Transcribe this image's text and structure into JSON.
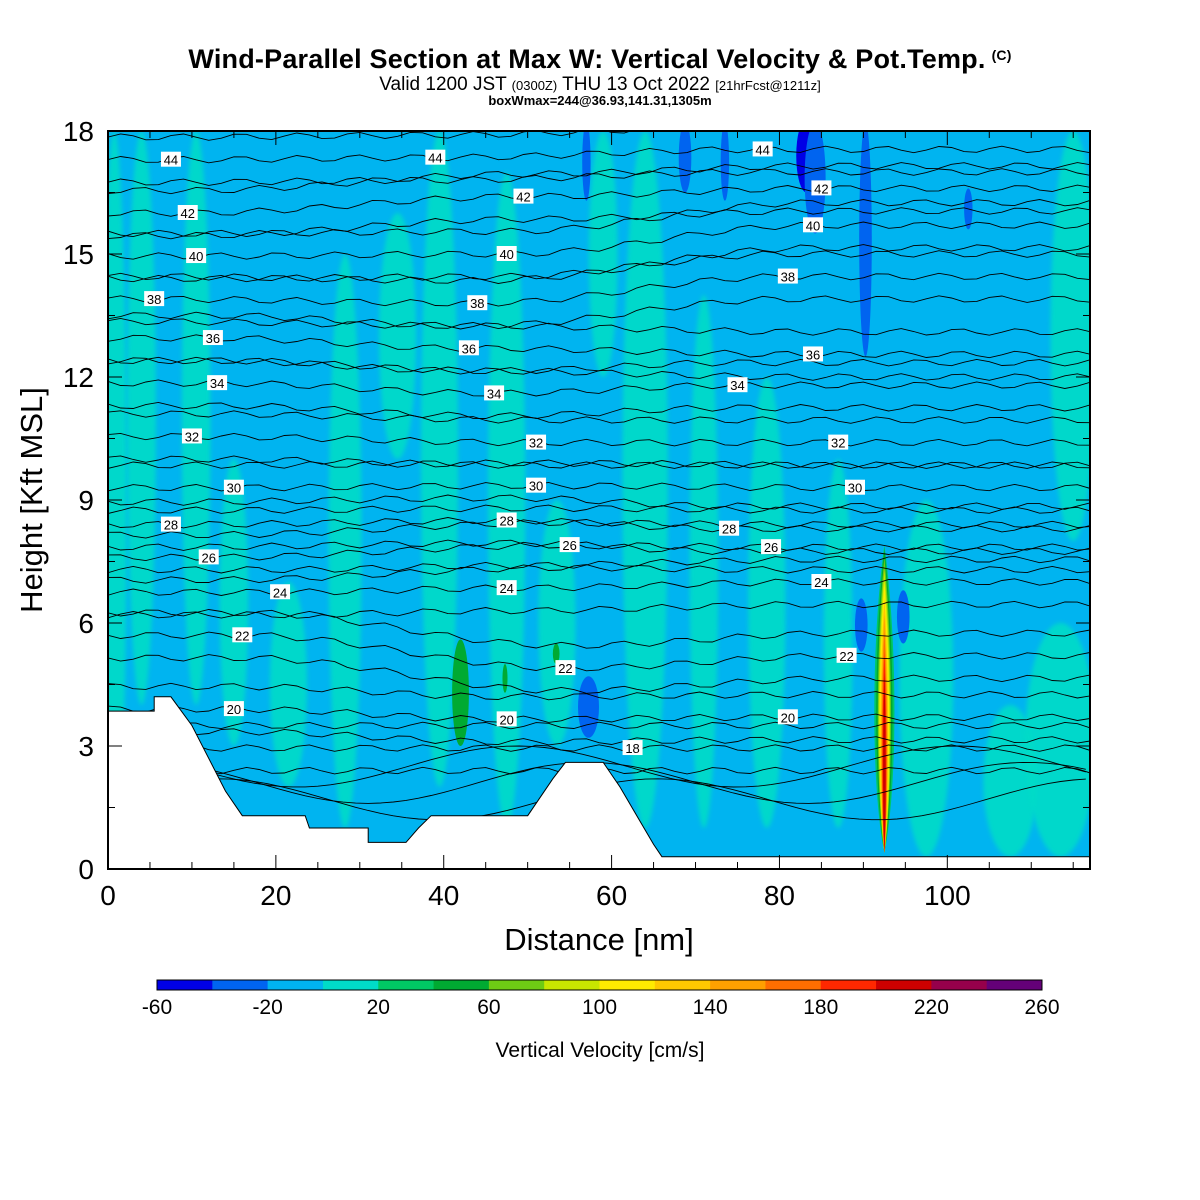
{
  "chart_data": {
    "type": "heatmap",
    "title": "Wind-Parallel Section at Max W: Vertical Velocity & Pot.Temp.",
    "copyright": "(C)",
    "subtitle_main_a": "Valid 1200 JST",
    "subtitle_utc": "(0300Z)",
    "subtitle_main_b": "THU 13 Oct 2022",
    "subtitle_fcst": "[21hrFcst@1211z]",
    "subtitle2": "boxWmax=244@36.93,141.31,1305m",
    "xlabel": "Distance [nm]",
    "ylabel": "Height [Kft MSL]",
    "xlim": [
      0,
      117
    ],
    "ylim": [
      0,
      18
    ],
    "xticks": [
      0,
      20,
      40,
      60,
      80,
      100
    ],
    "yticks": [
      0,
      3,
      6,
      9,
      12,
      15,
      18
    ],
    "colorbar": {
      "label": "Vertical Velocity [cm/s]",
      "min": -60,
      "max": 260,
      "step": 20,
      "tick_labels": [
        "-60",
        "-20",
        "20",
        "60",
        "100",
        "140",
        "180",
        "220",
        "260"
      ],
      "colors": [
        "#0000e6",
        "#0064f0",
        "#00b4f0",
        "#00dcc8",
        "#00c864",
        "#00aa32",
        "#6ecb14",
        "#c8e600",
        "#ffeb00",
        "#ffc800",
        "#ffa000",
        "#ff6e00",
        "#ff2800",
        "#cd0000",
        "#96004b",
        "#640078"
      ]
    },
    "max_updraft": {
      "distance_nm": 92.5,
      "top_kft": 7.8,
      "peak_cms": 244
    },
    "terrain": [
      {
        "x": 0,
        "top_kft": 3.85
      },
      {
        "x": 5.5,
        "top_kft": 3.85
      },
      {
        "x": 5.5,
        "top_kft": 4.2
      },
      {
        "x": 7.5,
        "top_kft": 4.2
      },
      {
        "x": 10,
        "top_kft": 3.5
      },
      {
        "x": 12,
        "top_kft": 2.7
      },
      {
        "x": 14,
        "top_kft": 1.9
      },
      {
        "x": 16,
        "top_kft": 1.3
      },
      {
        "x": 23.5,
        "top_kft": 1.3
      },
      {
        "x": 24,
        "top_kft": 1.0
      },
      {
        "x": 31,
        "top_kft": 1.0
      },
      {
        "x": 31,
        "top_kft": 0.65
      },
      {
        "x": 35.5,
        "top_kft": 0.65
      },
      {
        "x": 37,
        "top_kft": 1.0
      },
      {
        "x": 38.5,
        "top_kft": 1.3
      },
      {
        "x": 50,
        "top_kft": 1.3
      },
      {
        "x": 53,
        "top_kft": 2.2
      },
      {
        "x": 54.5,
        "top_kft": 2.6
      },
      {
        "x": 59,
        "top_kft": 2.6
      },
      {
        "x": 61,
        "top_kft": 2.0
      },
      {
        "x": 63,
        "top_kft": 1.3
      },
      {
        "x": 65,
        "top_kft": 0.6
      },
      {
        "x": 66,
        "top_kft": 0.3
      },
      {
        "x": 117,
        "top_kft": 0.3
      }
    ],
    "theta_contours": [
      {
        "label": "44",
        "x": 7.5,
        "y": 17.3
      },
      {
        "label": "44",
        "x": 39,
        "y": 17.35
      },
      {
        "label": "44",
        "x": 78,
        "y": 17.55
      },
      {
        "label": "42",
        "x": 9.5,
        "y": 16.0
      },
      {
        "label": "42",
        "x": 49.5,
        "y": 16.4
      },
      {
        "label": "42",
        "x": 85,
        "y": 16.6
      },
      {
        "label": "40",
        "x": 10.5,
        "y": 14.95
      },
      {
        "label": "40",
        "x": 47.5,
        "y": 15.0
      },
      {
        "label": "40",
        "x": 84,
        "y": 15.7
      },
      {
        "label": "38",
        "x": 5.5,
        "y": 13.9
      },
      {
        "label": "38",
        "x": 44,
        "y": 13.8
      },
      {
        "label": "38",
        "x": 81,
        "y": 14.45
      },
      {
        "label": "36",
        "x": 12.5,
        "y": 12.95
      },
      {
        "label": "36",
        "x": 43,
        "y": 12.7
      },
      {
        "label": "36",
        "x": 84,
        "y": 12.55
      },
      {
        "label": "34",
        "x": 13,
        "y": 11.85
      },
      {
        "label": "34",
        "x": 46,
        "y": 11.6
      },
      {
        "label": "34",
        "x": 75,
        "y": 11.8
      },
      {
        "label": "32",
        "x": 10,
        "y": 10.55
      },
      {
        "label": "32",
        "x": 51,
        "y": 10.4
      },
      {
        "label": "32",
        "x": 87,
        "y": 10.4
      },
      {
        "label": "30",
        "x": 15,
        "y": 9.3
      },
      {
        "label": "30",
        "x": 51,
        "y": 9.35
      },
      {
        "label": "30",
        "x": 89,
        "y": 9.3
      },
      {
        "label": "28",
        "x": 7.5,
        "y": 8.4
      },
      {
        "label": "28",
        "x": 47.5,
        "y": 8.5
      },
      {
        "label": "28",
        "x": 74,
        "y": 8.3
      },
      {
        "label": "26",
        "x": 12,
        "y": 7.6
      },
      {
        "label": "26",
        "x": 55,
        "y": 7.9
      },
      {
        "label": "26",
        "x": 79,
        "y": 7.85
      },
      {
        "label": "24",
        "x": 20.5,
        "y": 6.75
      },
      {
        "label": "24",
        "x": 47.5,
        "y": 6.85
      },
      {
        "label": "24",
        "x": 85,
        "y": 7.0
      },
      {
        "label": "22",
        "x": 16,
        "y": 5.7
      },
      {
        "label": "22",
        "x": 54.5,
        "y": 4.9
      },
      {
        "label": "22",
        "x": 88,
        "y": 5.2
      },
      {
        "label": "20",
        "x": 15,
        "y": 3.9
      },
      {
        "label": "20",
        "x": 47.5,
        "y": 3.65
      },
      {
        "label": "20",
        "x": 81,
        "y": 3.7
      },
      {
        "label": "18",
        "x": 62.5,
        "y": 2.95
      }
    ],
    "background_w_cms": "-20 to 20"
  }
}
